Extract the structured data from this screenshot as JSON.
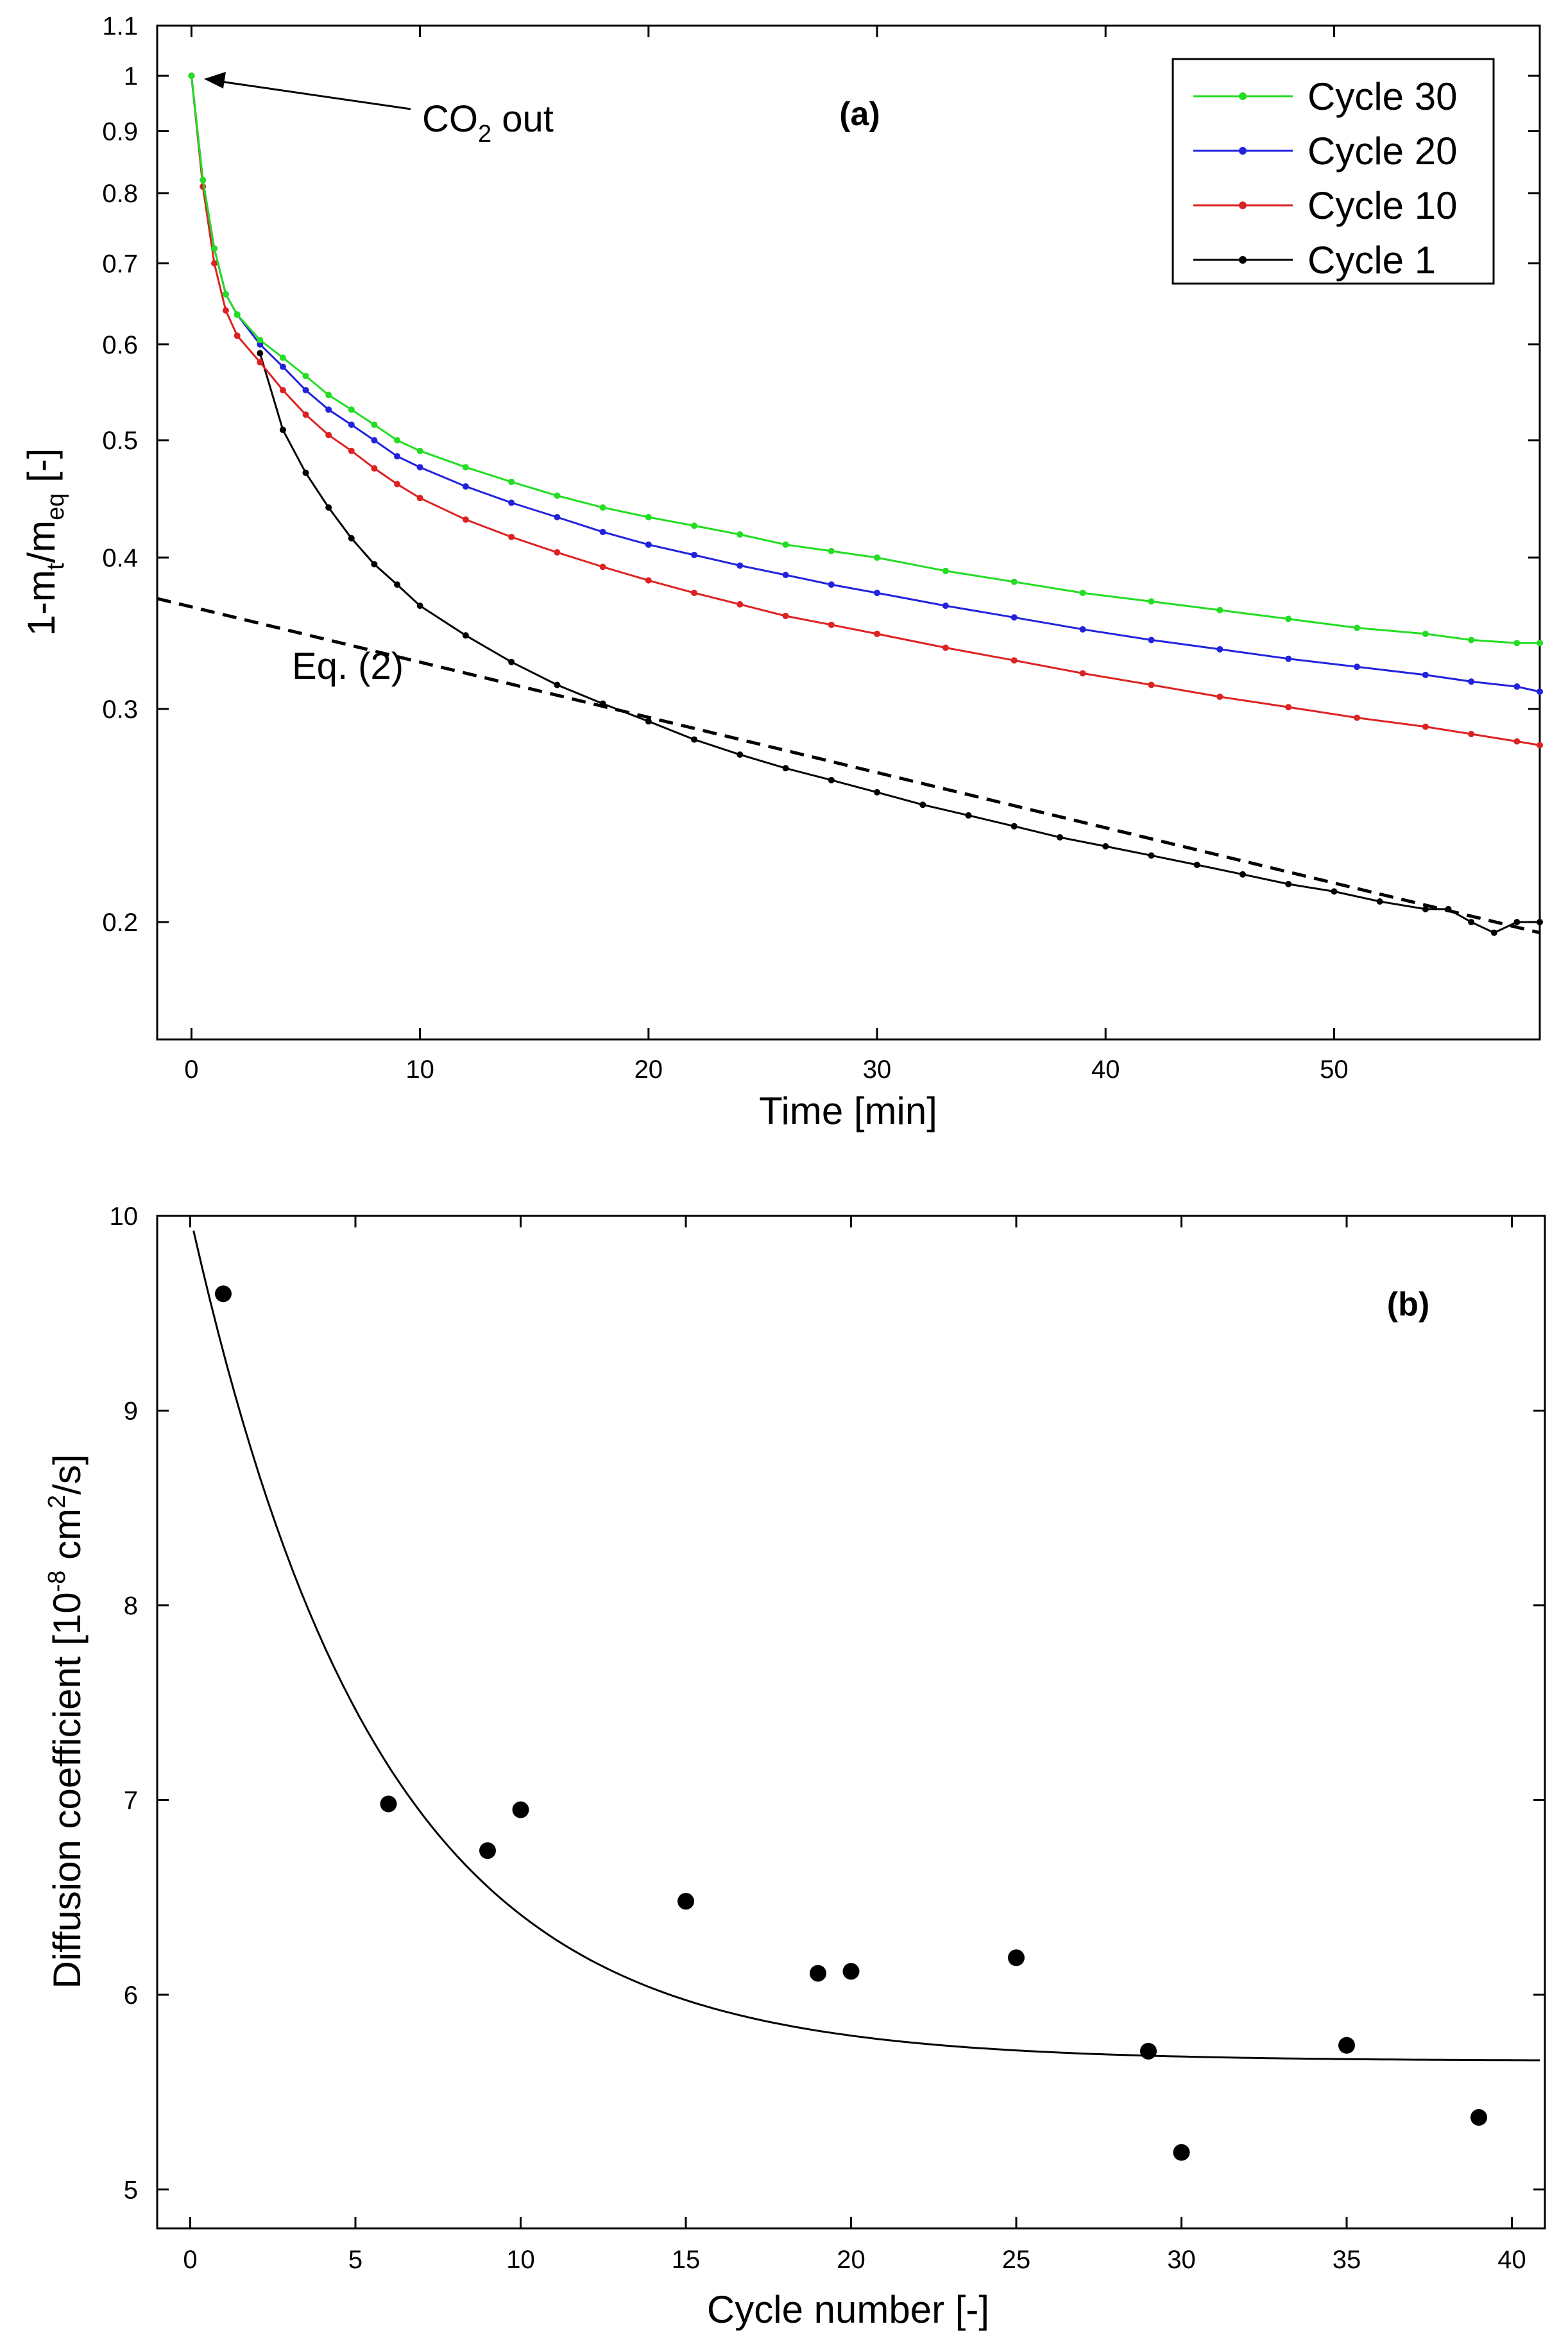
{
  "chart_data": [
    {
      "panel_label": "(a)",
      "type": "line",
      "yscale": "log",
      "xlabel": "Time [min]",
      "ylabel": {
        "main": "1-m",
        "sub_t": "t",
        "slash": "/m",
        "sub_eq": "eq",
        "unit": " [-]"
      },
      "xlim": [
        -1.5,
        59
      ],
      "ylim": [
        0.16,
        1.1
      ],
      "x_ticks": [
        0,
        10,
        20,
        30,
        40,
        50
      ],
      "x_tick_labels": [
        "0",
        "10",
        "20",
        "30",
        "40",
        "50"
      ],
      "y_ticks": [
        0.2,
        0.3,
        0.4,
        0.5,
        0.6,
        0.7,
        0.8,
        0.9,
        1,
        1.1
      ],
      "y_tick_labels": [
        "0.2",
        "0.3",
        "0.4",
        "0.5",
        "0.6",
        "0.7",
        "0.8",
        "0.9",
        "1",
        "1.1"
      ],
      "legend_position": "top-right",
      "series": [
        {
          "name": "Cycle 30",
          "color": "#22dd22",
          "x": [
            0,
            0.5,
            1,
            1.5,
            2,
            3,
            4,
            5,
            6,
            7,
            8,
            9,
            10,
            12,
            14,
            16,
            18,
            20,
            22,
            24,
            26,
            28,
            30,
            33,
            36,
            39,
            42,
            45,
            48,
            51,
            54,
            56,
            58,
            59
          ],
          "y": [
            1.0,
            0.82,
            0.72,
            0.66,
            0.635,
            0.605,
            0.585,
            0.565,
            0.545,
            0.53,
            0.515,
            0.5,
            0.49,
            0.475,
            0.462,
            0.45,
            0.44,
            0.432,
            0.425,
            0.418,
            0.41,
            0.405,
            0.4,
            0.39,
            0.382,
            0.374,
            0.368,
            0.362,
            0.356,
            0.35,
            0.346,
            0.342,
            0.34,
            0.34
          ]
        },
        {
          "name": "Cycle 20",
          "color": "#2222dd",
          "x": [
            0,
            0.5,
            1,
            1.5,
            2,
            3,
            4,
            5,
            6,
            7,
            8,
            9,
            10,
            12,
            14,
            16,
            18,
            20,
            22,
            24,
            26,
            28,
            30,
            33,
            36,
            39,
            42,
            45,
            48,
            51,
            54,
            56,
            58,
            59
          ],
          "y": [
            1.0,
            0.82,
            0.72,
            0.66,
            0.635,
            0.6,
            0.575,
            0.55,
            0.53,
            0.515,
            0.5,
            0.485,
            0.475,
            0.458,
            0.444,
            0.432,
            0.42,
            0.41,
            0.402,
            0.394,
            0.387,
            0.38,
            0.374,
            0.365,
            0.357,
            0.349,
            0.342,
            0.336,
            0.33,
            0.325,
            0.32,
            0.316,
            0.313,
            0.31
          ]
        },
        {
          "name": "Cycle 10",
          "color": "#dd2222",
          "x": [
            0,
            0.5,
            1,
            1.5,
            2,
            3,
            4,
            5,
            6,
            7,
            8,
            9,
            10,
            12,
            14,
            16,
            18,
            20,
            22,
            24,
            26,
            28,
            30,
            33,
            36,
            39,
            42,
            45,
            48,
            51,
            54,
            56,
            58,
            59
          ],
          "y": [
            1.0,
            0.81,
            0.7,
            0.64,
            0.61,
            0.58,
            0.55,
            0.525,
            0.505,
            0.49,
            0.474,
            0.46,
            0.448,
            0.43,
            0.416,
            0.404,
            0.393,
            0.383,
            0.374,
            0.366,
            0.358,
            0.352,
            0.346,
            0.337,
            0.329,
            0.321,
            0.314,
            0.307,
            0.301,
            0.295,
            0.29,
            0.286,
            0.282,
            0.28
          ]
        },
        {
          "name": "Cycle 1",
          "color": "#000000",
          "x": [
            3,
            4,
            5,
            6,
            7,
            8,
            9,
            10,
            12,
            14,
            16,
            18,
            20,
            22,
            24,
            26,
            28,
            30,
            32,
            34,
            36,
            38,
            40,
            42,
            44,
            46,
            48,
            50,
            52,
            54,
            55,
            56,
            57,
            58,
            59
          ],
          "y": [
            0.59,
            0.51,
            0.47,
            0.44,
            0.415,
            0.395,
            0.38,
            0.365,
            0.345,
            0.328,
            0.314,
            0.303,
            0.293,
            0.283,
            0.275,
            0.268,
            0.262,
            0.256,
            0.25,
            0.245,
            0.24,
            0.235,
            0.231,
            0.227,
            0.223,
            0.219,
            0.215,
            0.212,
            0.208,
            0.205,
            0.205,
            0.2,
            0.196,
            0.2,
            0.2
          ]
        }
      ],
      "fit_line": {
        "name": "Eq. (2)",
        "style": "dashed",
        "x0": -1.5,
        "y0": 0.37,
        "x1": 59,
        "y1": 0.196
      },
      "annotations": [
        {
          "text_main": "CO",
          "text_sub": "2",
          "text_rest": " out",
          "points_to": [
            0,
            1.0
          ]
        },
        {
          "text": "Eq. (2)"
        }
      ]
    },
    {
      "panel_label": "(b)",
      "type": "scatter",
      "xlabel": "Cycle number [-]",
      "ylabel": {
        "main": "Diffusion coefficient [10",
        "sup": "-8",
        "mid": " cm",
        "sup2": "2",
        "end": "/s]"
      },
      "xlim": [
        -1,
        41
      ],
      "ylim": [
        4.8,
        10
      ],
      "x_ticks": [
        0,
        5,
        10,
        15,
        20,
        25,
        30,
        35,
        40
      ],
      "x_tick_labels": [
        "0",
        "5",
        "10",
        "15",
        "20",
        "25",
        "30",
        "35",
        "40"
      ],
      "y_ticks": [
        5,
        6,
        7,
        8,
        9,
        10
      ],
      "y_tick_labels": [
        "5",
        "6",
        "7",
        "8",
        "9",
        "10"
      ],
      "points": {
        "x": [
          1,
          6,
          9,
          10,
          15,
          19,
          20,
          25,
          29,
          30,
          35,
          39
        ],
        "y": [
          9.6,
          6.98,
          6.74,
          6.95,
          6.48,
          6.11,
          6.12,
          6.19,
          5.71,
          5.19,
          5.74,
          5.37
        ]
      },
      "fit_curve": {
        "type": "exponential decay",
        "y_inf": 5.66,
        "amplitude": 4.34,
        "tau": 5.7,
        "x_range": [
          0.1,
          41
        ]
      }
    }
  ]
}
